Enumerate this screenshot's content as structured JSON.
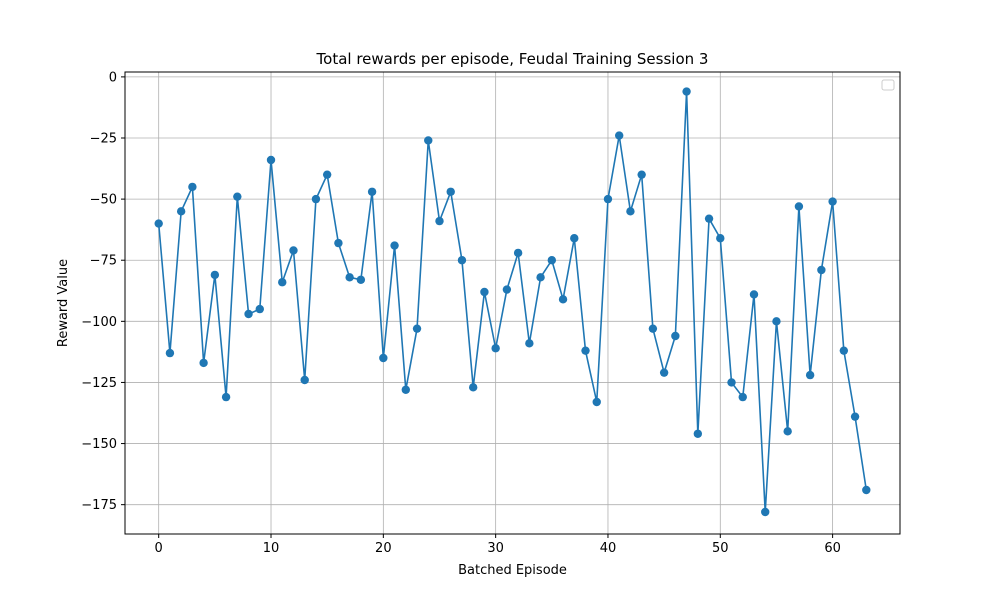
{
  "chart_data": {
    "type": "line",
    "title": "Total rewards per episode, Feudal Training Session 3",
    "xlabel": "Batched Episode",
    "ylabel": "Reward Value",
    "xlim": [
      -3,
      66
    ],
    "ylim": [
      -187,
      2
    ],
    "xticks": [
      0,
      10,
      20,
      30,
      40,
      50,
      60
    ],
    "yticks": [
      0,
      -25,
      -50,
      -75,
      -100,
      -125,
      -150,
      -175
    ],
    "grid": true,
    "legend": "top-right",
    "line_color": "#1f77b4",
    "marker": "circle",
    "series": [
      {
        "x": [
          0,
          1,
          2,
          3,
          4,
          5,
          6,
          7,
          8,
          9,
          10,
          11,
          12,
          13,
          14,
          15,
          16,
          17,
          18,
          19,
          20,
          21,
          22,
          23,
          24,
          25,
          26,
          27,
          28,
          29,
          30,
          31,
          32,
          33,
          34,
          35,
          36,
          37,
          38,
          39,
          40,
          41,
          42,
          43,
          44,
          45,
          46,
          47,
          48,
          49,
          50,
          51,
          52,
          53,
          54,
          55,
          56,
          57,
          58,
          59,
          60,
          61,
          62,
          63
        ],
        "values": [
          -60,
          -113,
          -55,
          -45,
          -117,
          -81,
          -131,
          -49,
          -97,
          -95,
          -34,
          -84,
          -71,
          -124,
          -50,
          -40,
          -68,
          -82,
          -83,
          -47,
          -115,
          -69,
          -128,
          -103,
          -26,
          -59,
          -47,
          -75,
          -127,
          -88,
          -111,
          -87,
          -72,
          -109,
          -82,
          -75,
          -91,
          -66,
          -112,
          -133,
          -50,
          -24,
          -55,
          -40,
          -103,
          -121,
          -106,
          -6,
          -146,
          -58,
          -66,
          -125,
          -131,
          -89,
          -178,
          -100,
          -145,
          -53,
          -122,
          -79,
          -51,
          -112,
          -139,
          -169
        ]
      }
    ]
  }
}
